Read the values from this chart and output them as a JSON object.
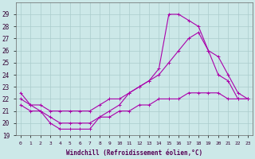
{
  "background_color": "#cce8e8",
  "grid_color": "#aacccc",
  "line_color": "#aa00aa",
  "xlim": [
    -0.5,
    23.5
  ],
  "ylim": [
    19,
    30
  ],
  "yticks": [
    19,
    20,
    21,
    22,
    23,
    24,
    25,
    26,
    27,
    28,
    29
  ],
  "xlabel": "Windchill (Refroidissement éolien,°C)",
  "line1_x": [
    0,
    1,
    2,
    3,
    4,
    5,
    6,
    7,
    8,
    9,
    10,
    11,
    12,
    13,
    14,
    15,
    16,
    17,
    18,
    19,
    20,
    21,
    22,
    23
  ],
  "line1_y": [
    22.5,
    21.5,
    21.0,
    20.0,
    19.5,
    19.5,
    19.5,
    19.5,
    20.5,
    21.0,
    21.5,
    22.5,
    23.0,
    23.5,
    24.5,
    29.0,
    29.0,
    28.5,
    28.0,
    26.0,
    24.0,
    23.5,
    22.0,
    22.0
  ],
  "line2_x": [
    0,
    1,
    2,
    3,
    4,
    5,
    6,
    7,
    8,
    9,
    10,
    11,
    12,
    13,
    14,
    15,
    16,
    17,
    18,
    19,
    20,
    21,
    22,
    23
  ],
  "line2_y": [
    22.0,
    21.5,
    21.5,
    21.0,
    21.0,
    21.0,
    21.0,
    21.0,
    21.5,
    22.0,
    22.0,
    22.5,
    23.0,
    23.5,
    24.0,
    25.0,
    26.0,
    27.0,
    27.5,
    26.0,
    25.5,
    24.0,
    22.5,
    22.0
  ],
  "line3_x": [
    0,
    1,
    2,
    3,
    4,
    5,
    6,
    7,
    8,
    9,
    10,
    11,
    12,
    13,
    14,
    15,
    16,
    17,
    18,
    19,
    20,
    21,
    22,
    23
  ],
  "line3_y": [
    21.5,
    21.0,
    21.0,
    20.5,
    20.0,
    20.0,
    20.0,
    20.0,
    20.5,
    20.5,
    21.0,
    21.0,
    21.5,
    21.5,
    22.0,
    22.0,
    22.0,
    22.5,
    22.5,
    22.5,
    22.5,
    22.0,
    22.0,
    22.0
  ]
}
